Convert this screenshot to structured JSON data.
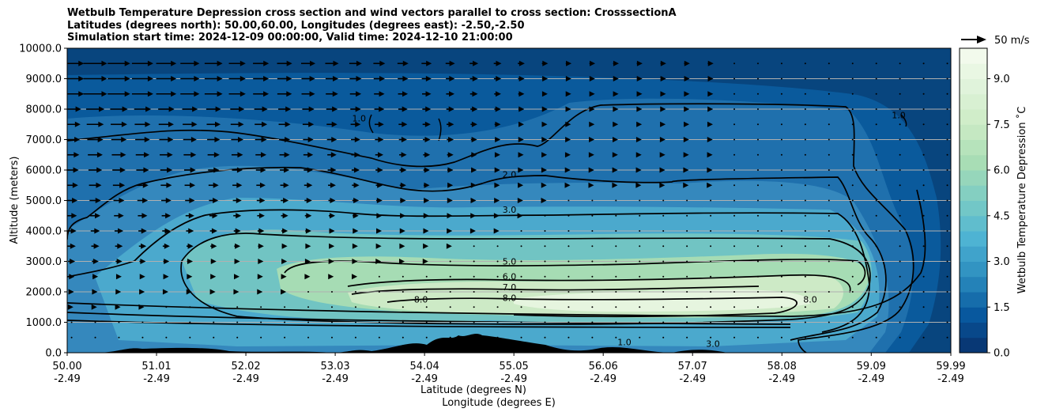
{
  "chart_data": {
    "type": "heatmap",
    "title_lines": [
      "Wetbulb Temperature Depression cross section and wind vectors parallel to cross section: CrosssectionA",
      "Latitudes (degrees north): 50.00,60.00, Longitudes (degrees east): -2.50,-2.50",
      "Simulation start time: 2024-12-09 00:00:00, Valid time: 2024-12-10 21:00:00"
    ],
    "ylabel": "Altitude (meters)",
    "xlabel_lines": [
      "Latitude (degrees N)",
      "Longitude (degrees E)"
    ],
    "ylim": [
      0,
      10000
    ],
    "xlim": [
      50.0,
      59.99
    ],
    "y_ticks": [
      "0.0",
      "1000.0",
      "2000.0",
      "3000.0",
      "4000.0",
      "5000.0",
      "6000.0",
      "7000.0",
      "8000.0",
      "9000.0",
      "10000.0"
    ],
    "y_tick_values": [
      0,
      1000,
      2000,
      3000,
      4000,
      5000,
      6000,
      7000,
      8000,
      9000,
      10000
    ],
    "x_ticks": [
      {
        "lat": "50.00",
        "lon": "-2.49",
        "v": 50.0
      },
      {
        "lat": "51.01",
        "lon": "-2.49",
        "v": 51.01
      },
      {
        "lat": "52.02",
        "lon": "-2.49",
        "v": 52.02
      },
      {
        "lat": "53.03",
        "lon": "-2.49",
        "v": 53.03
      },
      {
        "lat": "54.04",
        "lon": "-2.49",
        "v": 54.04
      },
      {
        "lat": "55.05",
        "lon": "-2.49",
        "v": 55.05
      },
      {
        "lat": "56.06",
        "lon": "-2.49",
        "v": 56.06
      },
      {
        "lat": "57.07",
        "lon": "-2.49",
        "v": 57.07
      },
      {
        "lat": "58.08",
        "lon": "-2.49",
        "v": 58.08
      },
      {
        "lat": "59.09",
        "lon": "-2.49",
        "v": 59.09
      },
      {
        "lat": "59.99",
        "lon": "-2.49",
        "v": 59.99
      }
    ],
    "colorbar": {
      "label": "Wetbulb Temperature Depression ˚C",
      "range": [
        0,
        10
      ],
      "ticks": [
        "0.0",
        "1.5",
        "3.0",
        "4.5",
        "6.0",
        "7.5",
        "9.0"
      ],
      "tick_values": [
        0,
        1.5,
        3,
        4.5,
        6,
        7.5,
        9
      ],
      "colormap": "GnBu_r",
      "colors": [
        "#08306b",
        "#08589e",
        "#2b8cbe",
        "#4eb3d3",
        "#7bccc4",
        "#a8ddb5",
        "#ccebc5",
        "#e0f3db",
        "#f7fcf0"
      ]
    },
    "contour_labels": [
      "1.0",
      "2.0",
      "3.0",
      "5.0",
      "6.0",
      "7.0",
      "8.0"
    ],
    "wind_key": {
      "label": "50 m/s",
      "value": 50
    },
    "grid": true,
    "core": {
      "lat_range": [
        52.2,
        59.6
      ],
      "alt_range": [
        1000,
        3000
      ],
      "max_depression": 9.5
    }
  }
}
